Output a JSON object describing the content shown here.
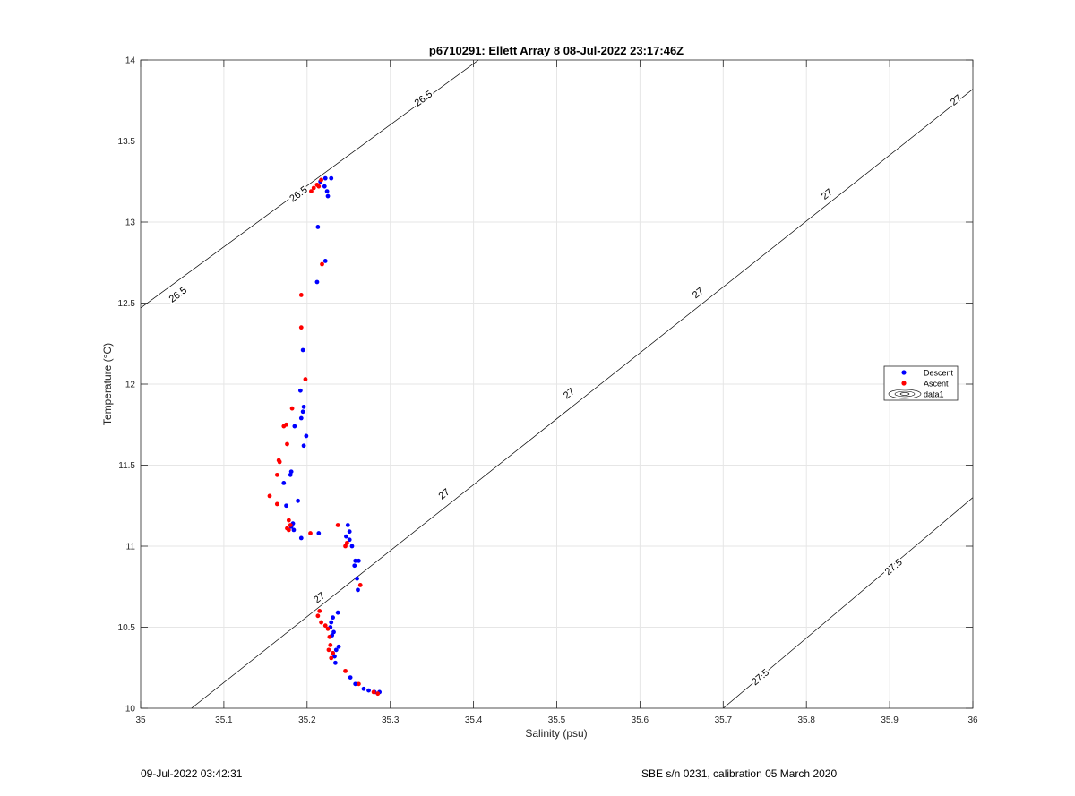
{
  "chart_data": {
    "type": "scatter",
    "title": "p6710291: Ellett Array 8 08-Jul-2022 23:17:46Z",
    "xlabel": "Salinity (psu)",
    "ylabel": "Temperature (°C)",
    "xlim": [
      35,
      36
    ],
    "ylim": [
      10,
      14
    ],
    "xticks": [
      "35",
      "35.1",
      "35.2",
      "35.3",
      "35.4",
      "35.5",
      "35.6",
      "35.7",
      "35.8",
      "35.9",
      "36"
    ],
    "yticks": [
      "10",
      "10.5",
      "11",
      "11.5",
      "12",
      "12.5",
      "13",
      "13.5",
      "14"
    ],
    "grid": true,
    "legend": {
      "placement": "right",
      "entries": [
        "Descent",
        "Ascent",
        "data1"
      ]
    },
    "contours": [
      {
        "label": "26.5",
        "points": [
          [
            35.0,
            12.47
          ],
          [
            35.406,
            14.0
          ]
        ],
        "label_positions": [
          [
            35.045,
            12.55
          ],
          [
            35.19,
            13.17
          ],
          [
            35.34,
            13.76
          ]
        ]
      },
      {
        "label": "27",
        "points": [
          [
            35.061,
            10.0
          ],
          [
            36.0,
            13.82
          ]
        ],
        "label_positions": [
          [
            35.215,
            10.68
          ],
          [
            35.365,
            11.32
          ],
          [
            35.515,
            11.94
          ],
          [
            35.67,
            12.56
          ],
          [
            35.825,
            13.17
          ],
          [
            35.98,
            13.75
          ]
        ]
      },
      {
        "label": "27.5",
        "points": [
          [
            35.7,
            10.0
          ],
          [
            36.0,
            11.3
          ]
        ],
        "label_positions": [
          [
            35.745,
            10.19
          ],
          [
            35.905,
            10.87
          ]
        ]
      }
    ],
    "series": [
      {
        "name": "Descent",
        "color": "#0000ff",
        "points": [
          [
            35.222,
            13.27
          ],
          [
            35.229,
            13.27
          ],
          [
            35.216,
            13.25
          ],
          [
            35.221,
            13.22
          ],
          [
            35.224,
            13.19
          ],
          [
            35.225,
            13.16
          ],
          [
            35.213,
            12.97
          ],
          [
            35.222,
            12.76
          ],
          [
            35.212,
            12.63
          ],
          [
            35.195,
            12.21
          ],
          [
            35.192,
            11.96
          ],
          [
            35.196,
            11.86
          ],
          [
            35.195,
            11.83
          ],
          [
            35.193,
            11.79
          ],
          [
            35.185,
            11.74
          ],
          [
            35.199,
            11.68
          ],
          [
            35.196,
            11.62
          ],
          [
            35.181,
            11.46
          ],
          [
            35.18,
            11.44
          ],
          [
            35.172,
            11.39
          ],
          [
            35.189,
            11.28
          ],
          [
            35.175,
            11.25
          ],
          [
            35.183,
            11.14
          ],
          [
            35.181,
            11.12
          ],
          [
            35.184,
            11.1
          ],
          [
            35.193,
            11.05
          ],
          [
            35.214,
            11.08
          ],
          [
            35.249,
            11.13
          ],
          [
            35.251,
            11.09
          ],
          [
            35.247,
            11.06
          ],
          [
            35.251,
            11.04
          ],
          [
            35.254,
            11.0
          ],
          [
            35.258,
            10.91
          ],
          [
            35.262,
            10.91
          ],
          [
            35.257,
            10.88
          ],
          [
            35.26,
            10.8
          ],
          [
            35.261,
            10.73
          ],
          [
            35.237,
            10.59
          ],
          [
            35.231,
            10.56
          ],
          [
            35.229,
            10.53
          ],
          [
            35.228,
            10.5
          ],
          [
            35.232,
            10.47
          ],
          [
            35.23,
            10.45
          ],
          [
            35.238,
            10.38
          ],
          [
            35.235,
            10.36
          ],
          [
            35.231,
            10.34
          ],
          [
            35.233,
            10.32
          ],
          [
            35.234,
            10.28
          ],
          [
            35.252,
            10.19
          ],
          [
            35.258,
            10.15
          ],
          [
            35.268,
            10.12
          ],
          [
            35.274,
            10.11
          ],
          [
            35.281,
            10.1
          ],
          [
            35.287,
            10.1
          ]
        ]
      },
      {
        "name": "Ascent",
        "color": "#ff0000",
        "points": [
          [
            35.217,
            13.26
          ],
          [
            35.212,
            13.23
          ],
          [
            35.208,
            13.21
          ],
          [
            35.205,
            13.19
          ],
          [
            35.214,
            13.22
          ],
          [
            35.218,
            12.74
          ],
          [
            35.193,
            12.55
          ],
          [
            35.193,
            12.35
          ],
          [
            35.198,
            12.03
          ],
          [
            35.182,
            11.85
          ],
          [
            35.175,
            11.75
          ],
          [
            35.172,
            11.74
          ],
          [
            35.176,
            11.63
          ],
          [
            35.166,
            11.53
          ],
          [
            35.167,
            11.52
          ],
          [
            35.164,
            11.44
          ],
          [
            35.155,
            11.31
          ],
          [
            35.164,
            11.26
          ],
          [
            35.178,
            11.16
          ],
          [
            35.18,
            11.13
          ],
          [
            35.176,
            11.11
          ],
          [
            35.178,
            11.1
          ],
          [
            35.204,
            11.08
          ],
          [
            35.237,
            11.13
          ],
          [
            35.248,
            11.02
          ],
          [
            35.246,
            11.0
          ],
          [
            35.264,
            10.76
          ],
          [
            35.215,
            10.6
          ],
          [
            35.213,
            10.57
          ],
          [
            35.217,
            10.53
          ],
          [
            35.222,
            10.51
          ],
          [
            35.225,
            10.49
          ],
          [
            35.227,
            10.44
          ],
          [
            35.228,
            10.39
          ],
          [
            35.226,
            10.36
          ],
          [
            35.231,
            10.34
          ],
          [
            35.229,
            10.31
          ],
          [
            35.246,
            10.23
          ],
          [
            35.262,
            10.15
          ],
          [
            35.28,
            10.1
          ],
          [
            35.285,
            10.09
          ]
        ]
      }
    ]
  },
  "footer": {
    "left": "09-Jul-2022 03:42:31",
    "right": "SBE s/n 0231, calibration 05 March 2020"
  }
}
